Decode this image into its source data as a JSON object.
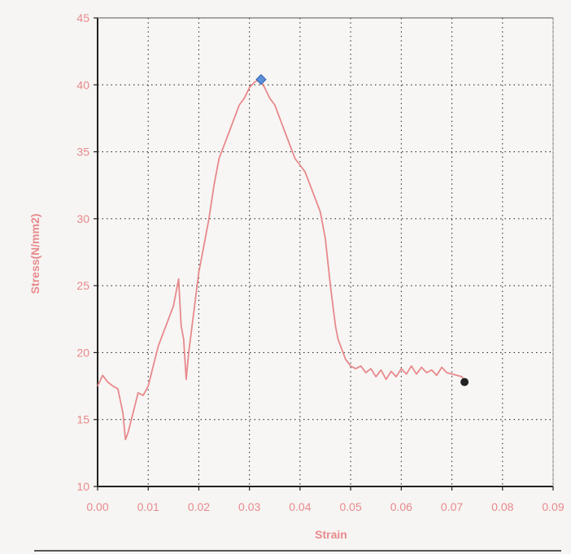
{
  "chart_data": {
    "type": "line",
    "title": "",
    "xlabel": "Strain",
    "ylabel": "Stress(N/mm2)",
    "xlim": [
      0.0,
      0.09
    ],
    "ylim": [
      10,
      45
    ],
    "x_ticks": [
      0.0,
      0.01,
      0.02,
      0.03,
      0.04,
      0.05,
      0.06,
      0.07,
      0.08,
      0.09
    ],
    "x_tick_labels": [
      "0.00",
      "0.01",
      "0.02",
      "0.03",
      "0.04",
      "0.05",
      "0.06",
      "0.07",
      "0.08",
      "0.09"
    ],
    "y_ticks": [
      10,
      15,
      20,
      25,
      30,
      35,
      40,
      45
    ],
    "y_tick_labels": [
      "10",
      "15",
      "20",
      "25",
      "30",
      "35",
      "40",
      "45"
    ],
    "grid": true,
    "colors": {
      "curve": "#e8898c",
      "axis_text": "#e8898c",
      "grid": "#333333",
      "peak_marker": "#5b8fd9",
      "end_marker": "#222222"
    },
    "series": [
      {
        "x": [
          0.0,
          0.001,
          0.002,
          0.003,
          0.004,
          0.005,
          0.0055,
          0.006,
          0.007,
          0.008,
          0.009,
          0.01,
          0.011,
          0.012,
          0.013,
          0.014,
          0.015,
          0.016,
          0.0165,
          0.017,
          0.0175,
          0.018,
          0.019,
          0.02,
          0.021,
          0.022,
          0.023,
          0.024,
          0.025,
          0.026,
          0.027,
          0.028,
          0.029,
          0.03,
          0.031,
          0.032,
          0.033,
          0.034,
          0.035,
          0.036,
          0.037,
          0.038,
          0.039,
          0.04,
          0.041,
          0.042,
          0.043,
          0.044,
          0.045,
          0.046,
          0.047,
          0.0475,
          0.048,
          0.0485,
          0.049,
          0.05,
          0.051,
          0.052,
          0.053,
          0.054,
          0.055,
          0.056,
          0.057,
          0.058,
          0.059,
          0.06,
          0.061,
          0.062,
          0.063,
          0.064,
          0.065,
          0.066,
          0.067,
          0.068,
          0.069,
          0.07,
          0.071,
          0.072,
          0.0725
        ],
        "y": [
          17.5,
          18.3,
          17.8,
          17.5,
          17.3,
          15.5,
          13.5,
          14.0,
          15.5,
          17.0,
          16.8,
          17.5,
          19.0,
          20.5,
          21.5,
          22.5,
          23.5,
          25.5,
          22.0,
          21.0,
          18.0,
          20.0,
          23.0,
          26.0,
          28.0,
          30.0,
          32.5,
          34.5,
          35.5,
          36.5,
          37.5,
          38.5,
          39.0,
          39.8,
          40.2,
          40.4,
          39.8,
          39.0,
          38.5,
          37.5,
          36.5,
          35.5,
          34.5,
          34.0,
          33.5,
          32.5,
          31.5,
          30.5,
          28.5,
          25.0,
          22.0,
          21.0,
          20.5,
          20.0,
          19.5,
          19.0,
          18.8,
          19.0,
          18.5,
          18.8,
          18.2,
          18.7,
          18.0,
          18.6,
          18.2,
          18.8,
          18.4,
          19.0,
          18.4,
          18.9,
          18.5,
          18.7,
          18.3,
          18.9,
          18.5,
          18.4,
          18.3,
          18.2,
          17.9
        ]
      }
    ],
    "peak_point": {
      "x": 0.0323,
      "y": 40.4
    },
    "end_point": {
      "x": 0.0725,
      "y": 17.8
    }
  }
}
